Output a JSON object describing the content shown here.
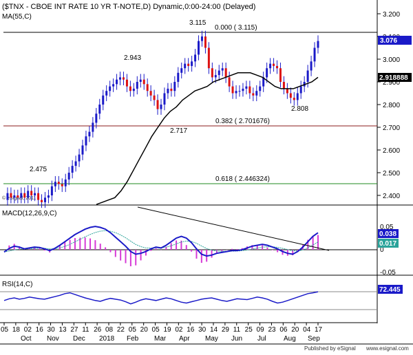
{
  "chart_data": {
    "type": "line",
    "title": "($TNX - CBOE INT RATE 10 YR T-NOTE,D) Dynamic,0:00-24:00 (Delayed)",
    "watermark": "© eSignal, 2011",
    "footer_left": "Published by eSignal",
    "footer_right": "Published by eSignal   www.esignal.com",
    "footer_url": "www.esignal.com",
    "x_axis": {
      "day_labels": [
        "05",
        "18",
        "02",
        "16",
        "30",
        "13",
        "27",
        "11",
        "26",
        "08",
        "22",
        "05",
        "20",
        "05",
        "19",
        "02",
        "16",
        "30",
        "14",
        "29",
        "11",
        "25",
        "09",
        "23",
        "06",
        "20",
        "04",
        "17"
      ],
      "month_labels": [
        "Oct",
        "Nov",
        "Dec",
        "2018",
        "Feb",
        "Mar",
        "Apr",
        "May",
        "Jun",
        "Jul",
        "Aug",
        "Sep"
      ]
    },
    "panels": {
      "price": {
        "ylim": [
          2.35,
          3.25
        ],
        "y_ticks": [
          "3.200",
          "3.100",
          "3.000",
          "2.900",
          "2.800",
          "2.700",
          "2.600",
          "2.500",
          "2.400"
        ],
        "series": [
          {
            "name": "$TNX",
            "kind": "candlestick",
            "color": "#1a1ac8",
            "close_points": [
              2.38,
              2.41,
              2.39,
              2.4,
              2.39,
              2.41,
              2.39,
              2.42,
              2.4,
              2.41,
              2.38,
              2.37,
              2.39,
              2.4,
              2.44,
              2.46,
              2.45,
              2.44,
              2.47,
              2.5,
              2.53,
              2.55,
              2.58,
              2.62,
              2.66,
              2.68,
              2.72,
              2.76,
              2.8,
              2.84,
              2.86,
              2.88,
              2.89,
              2.91,
              2.92,
              2.91,
              2.88,
              2.86,
              2.87,
              2.9,
              2.91,
              2.89,
              2.86,
              2.84,
              2.82,
              2.78,
              2.8,
              2.85,
              2.87,
              2.86,
              2.9,
              2.94,
              2.96,
              2.98,
              2.97,
              2.99,
              3.02,
              3.08,
              3.1,
              3.05,
              2.96,
              2.92,
              2.93,
              2.95,
              2.96,
              2.92,
              2.88,
              2.85,
              2.86,
              2.86,
              2.87,
              2.88,
              2.85,
              2.84,
              2.86,
              2.88,
              2.92,
              2.96,
              2.98,
              2.97,
              2.96,
              2.9,
              2.87,
              2.85,
              2.83,
              2.82,
              2.85,
              2.88,
              2.9,
              2.95,
              2.99,
              3.05,
              3.08
            ]
          },
          {
            "name": "MA(55,C)",
            "kind": "line",
            "color": "#000000",
            "points": [
              2.36,
              2.37,
              2.38,
              2.39,
              2.42,
              2.46,
              2.51,
              2.56,
              2.61,
              2.66,
              2.7,
              2.74,
              2.77,
              2.79,
              2.82,
              2.84,
              2.86,
              2.87,
              2.88,
              2.9,
              2.91,
              2.92,
              2.93,
              2.94,
              2.94,
              2.94,
              2.93,
              2.92,
              2.9,
              2.88,
              2.87,
              2.87,
              2.87,
              2.88,
              2.89,
              2.9,
              2.92
            ]
          }
        ],
        "last_price": "3.076",
        "ma_value": "2.918888",
        "hlines": [
          3.115,
          2.701676,
          2.446324
        ],
        "fib_labels": [
          "0.000 ( 3.115)",
          "0.382 ( 2.701676)",
          "0.618 ( 2.446324)"
        ],
        "annotations": [
          "3.115",
          "2.943",
          "2.717",
          "2.808",
          "2.475"
        ]
      },
      "macd": {
        "label": "MACD(12,26,9,C)",
        "y_ticks": [
          "0.05",
          "0",
          "-0.05"
        ],
        "values": [
          "0.038",
          "0.017"
        ],
        "colors": {
          "macd": "#1a1ac8",
          "signal": "#2aa39a",
          "histogram": "#d63ad6"
        }
      },
      "rsi": {
        "label": "RSI(14,C)",
        "value": "72.445",
        "color": "#1a1ac8"
      }
    }
  }
}
